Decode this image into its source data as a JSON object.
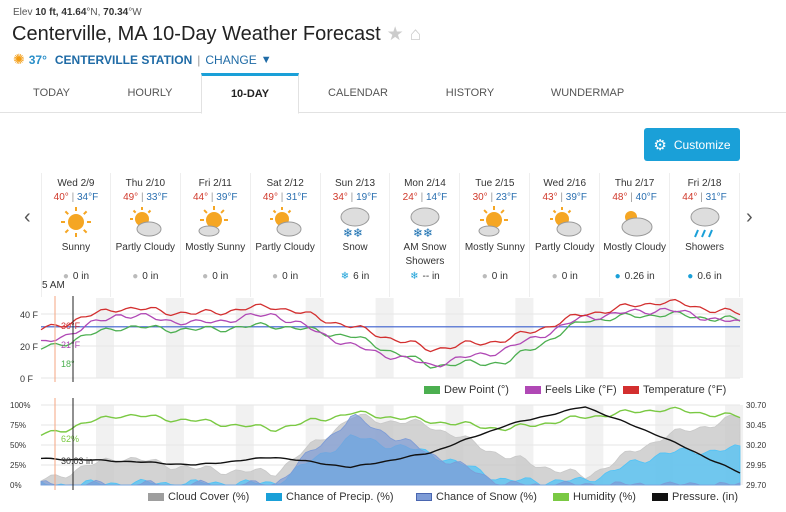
{
  "header": {
    "elev_label": "Elev",
    "elev_value": "10 ft,",
    "lat": "41.64",
    "lat_dir": "°N,",
    "lon": "70.34",
    "lon_dir": "°W",
    "title": "Centerville, MA 10-Day Weather Forecast",
    "current_temp": "37°",
    "station": "CENTERVILLE STATION",
    "separator": "|",
    "change": "CHANGE"
  },
  "tabs": [
    {
      "label": "TODAY"
    },
    {
      "label": "HOURLY"
    },
    {
      "label": "10-DAY",
      "active": true
    },
    {
      "label": "CALENDAR"
    },
    {
      "label": "HISTORY"
    },
    {
      "label": "WUNDERMAP"
    }
  ],
  "customize_label": "Customize",
  "days": [
    {
      "date": "Wed 2/9",
      "hi": "40°",
      "lo": "34°F",
      "condition": "Sunny",
      "icon": "sun-icon",
      "precip": "0 in",
      "precip_icon": "drop-icon"
    },
    {
      "date": "Thu 2/10",
      "hi": "49°",
      "lo": "33°F",
      "condition": "Partly Cloudy",
      "icon": "partly-cloudy-icon",
      "precip": "0 in",
      "precip_icon": "drop-icon"
    },
    {
      "date": "Fri 2/11",
      "hi": "44°",
      "lo": "39°F",
      "condition": "Mostly Sunny",
      "icon": "mostly-sunny-icon",
      "precip": "0 in",
      "precip_icon": "drop-icon"
    },
    {
      "date": "Sat 2/12",
      "hi": "49°",
      "lo": "31°F",
      "condition": "Partly Cloudy",
      "icon": "partly-cloudy-icon",
      "precip": "0 in",
      "precip_icon": "drop-icon"
    },
    {
      "date": "Sun 2/13",
      "hi": "34°",
      "lo": "19°F",
      "condition": "Snow",
      "icon": "snow-icon",
      "precip": "6 in",
      "precip_icon": "snowflake-icon"
    },
    {
      "date": "Mon 2/14",
      "hi": "24°",
      "lo": "14°F",
      "condition": "AM Snow Showers",
      "icon": "snow-icon",
      "precip": "-- in",
      "precip_icon": "snowflake-icon"
    },
    {
      "date": "Tue 2/15",
      "hi": "30°",
      "lo": "23°F",
      "condition": "Mostly Sunny",
      "icon": "mostly-sunny-icon",
      "precip": "0 in",
      "precip_icon": "drop-icon"
    },
    {
      "date": "Wed 2/16",
      "hi": "43°",
      "lo": "39°F",
      "condition": "Partly Cloudy",
      "icon": "partly-cloudy-icon",
      "precip": "0 in",
      "precip_icon": "drop-icon"
    },
    {
      "date": "Thu 2/17",
      "hi": "48°",
      "lo": "40°F",
      "condition": "Mostly Cloudy",
      "icon": "mostly-cloudy-icon",
      "precip": "0.26 in",
      "precip_icon": "drop-blue-icon"
    },
    {
      "date": "Fri 2/18",
      "hi": "44°",
      "lo": "31°F",
      "condition": "Showers",
      "icon": "rain-icon",
      "precip": "0.6 in",
      "precip_icon": "drop-blue-icon"
    }
  ],
  "time_label": "5 AM",
  "chart_data": [
    {
      "type": "line",
      "y_ticks": [
        "40 F",
        "20 F",
        "0 F"
      ],
      "ylim": [
        0,
        50
      ],
      "cursor_labels": {
        "temperature": "30°F",
        "feels_like": "21°F",
        "dew_point": "18°"
      },
      "series": [
        {
          "name": "Dew Point (°)",
          "color": "#4caf50",
          "daily": [
            18,
            32,
            30,
            33,
            26,
            8,
            10,
            36,
            40,
            36
          ]
        },
        {
          "name": "Feels Like (°F)",
          "color": "#b048b5",
          "daily": [
            21,
            40,
            34,
            40,
            20,
            8,
            18,
            38,
            43,
            34
          ]
        },
        {
          "name": "Temperature (°F)",
          "color": "#d32f2f",
          "daily": [
            30,
            44,
            40,
            45,
            32,
            18,
            24,
            40,
            48,
            40
          ]
        }
      ],
      "reference_line": 32,
      "reference_color": "#3a5fcd"
    },
    {
      "type": "area",
      "y_ticks_left": [
        "100%",
        "75%",
        "50%",
        "25%",
        "0%"
      ],
      "y_ticks_right": [
        "30.70",
        "30.45",
        "30.20",
        "29.95",
        "29.70"
      ],
      "ylim_left": [
        0,
        100
      ],
      "ylim_right": [
        29.7,
        30.7
      ],
      "cursor_labels": {
        "humidity": "62%",
        "pressure": "30.03 in"
      },
      "series": [
        {
          "name": "Cloud Cover (%)",
          "color": "#9e9e9e",
          "daily": [
            5,
            35,
            20,
            15,
            85,
            75,
            35,
            10,
            60,
            85
          ]
        },
        {
          "name": "Chance of Precip. (%)",
          "color": "#1aa0d8",
          "daily": [
            0,
            2,
            2,
            2,
            60,
            40,
            5,
            5,
            40,
            45
          ]
        },
        {
          "name": "Chance of Snow (%)",
          "color": "#8fa8d8",
          "daily": [
            0,
            0,
            0,
            0,
            85,
            40,
            0,
            0,
            0,
            0
          ]
        },
        {
          "name": "Humidity (%)",
          "color": "#7ac943",
          "daily": [
            62,
            88,
            80,
            70,
            90,
            80,
            70,
            85,
            95,
            85
          ]
        },
        {
          "name": "Pressure. (in)",
          "color": "#111111",
          "daily": [
            30.03,
            30.0,
            29.95,
            30.05,
            29.92,
            30.1,
            30.45,
            30.68,
            30.3,
            29.85
          ]
        }
      ]
    }
  ]
}
